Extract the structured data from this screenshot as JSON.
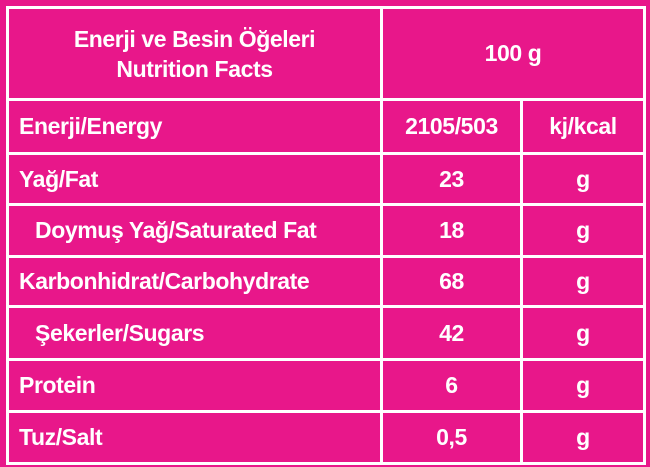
{
  "header": {
    "title_lines": [
      "Enerji ve Besin Öğeleri",
      "Nutrition Facts"
    ],
    "amount": "100 g"
  },
  "table": {
    "rows": [
      [
        "Enerji/Energy",
        "2105/503",
        "kj/kcal"
      ],
      [
        "Yağ/Fat",
        "23",
        "g"
      ],
      [
        "Doymuş Yağ/Saturated Fat",
        "18",
        "g"
      ],
      [
        "Karbonhidrat/Carbohydrate",
        "68",
        "g"
      ],
      [
        "Şekerler/Sugars",
        "42",
        "g"
      ],
      [
        "Protein",
        "6",
        "g"
      ],
      [
        "Tuz/Salt",
        "0,5",
        "g"
      ]
    ]
  }
}
